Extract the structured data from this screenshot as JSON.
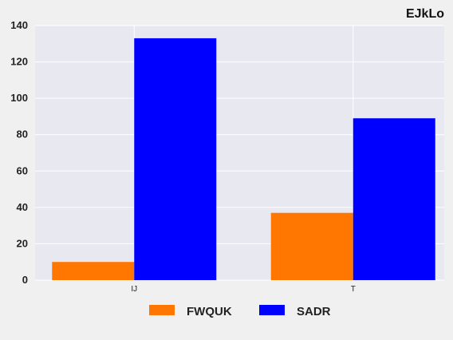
{
  "chart_data": {
    "type": "bar",
    "title": "EJkLo",
    "categories": [
      "IJ",
      "T"
    ],
    "series": [
      {
        "name": "FWQUK",
        "color": "#ff7700",
        "values": [
          10,
          37
        ]
      },
      {
        "name": "SADR",
        "color": "#0000ff",
        "values": [
          133,
          89
        ]
      }
    ],
    "yticks": [
      0,
      20,
      40,
      60,
      80,
      100,
      120,
      140
    ],
    "ylim": [
      0,
      140
    ],
    "grid": true,
    "legend_position": "bottom-center",
    "plot_background": "#e8e8f0"
  }
}
